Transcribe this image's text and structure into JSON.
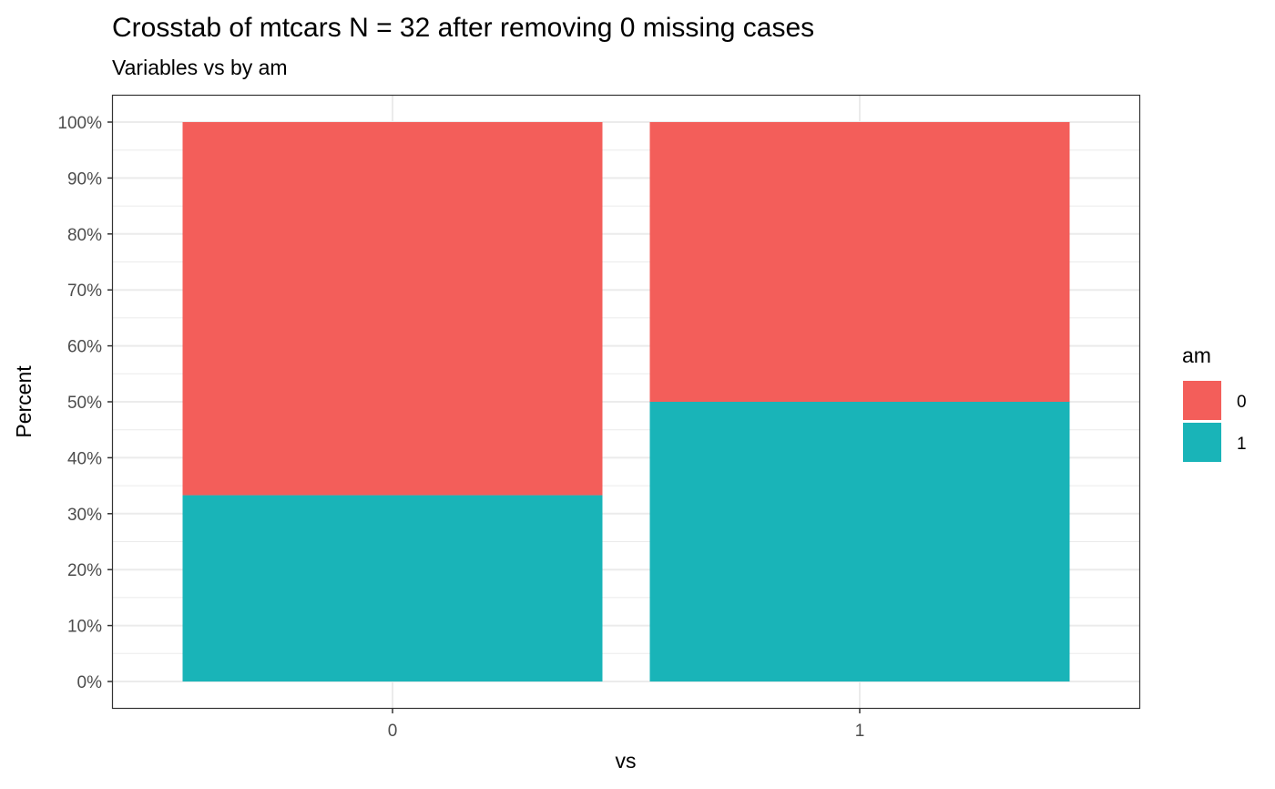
{
  "chart_data": {
    "type": "bar",
    "stacked": true,
    "title": "Crosstab of mtcars N = 32 after removing 0 missing cases",
    "subtitle": "Variables vs by am",
    "xlabel": "vs",
    "ylabel": "Percent",
    "categories": [
      "0",
      "1"
    ],
    "series": [
      {
        "name": "0",
        "values": [
          66.7,
          50.0
        ],
        "color": "#F35E5A"
      },
      {
        "name": "1",
        "values": [
          33.3,
          50.0
        ],
        "color": "#19B4B8"
      }
    ],
    "stack_order": [
      "1",
      "0"
    ],
    "ylim": [
      0,
      100
    ],
    "yticks": [
      0,
      10,
      20,
      30,
      40,
      50,
      60,
      70,
      80,
      90,
      100
    ],
    "ytick_labels": [
      "0%",
      "10%",
      "20%",
      "30%",
      "40%",
      "50%",
      "60%",
      "70%",
      "80%",
      "90%",
      "100%"
    ],
    "grid": true,
    "legend": {
      "title": "am",
      "position": "right",
      "items": [
        "0",
        "1"
      ]
    },
    "panel_border_color": "#333333",
    "grid_color": "#EBEBEB"
  }
}
